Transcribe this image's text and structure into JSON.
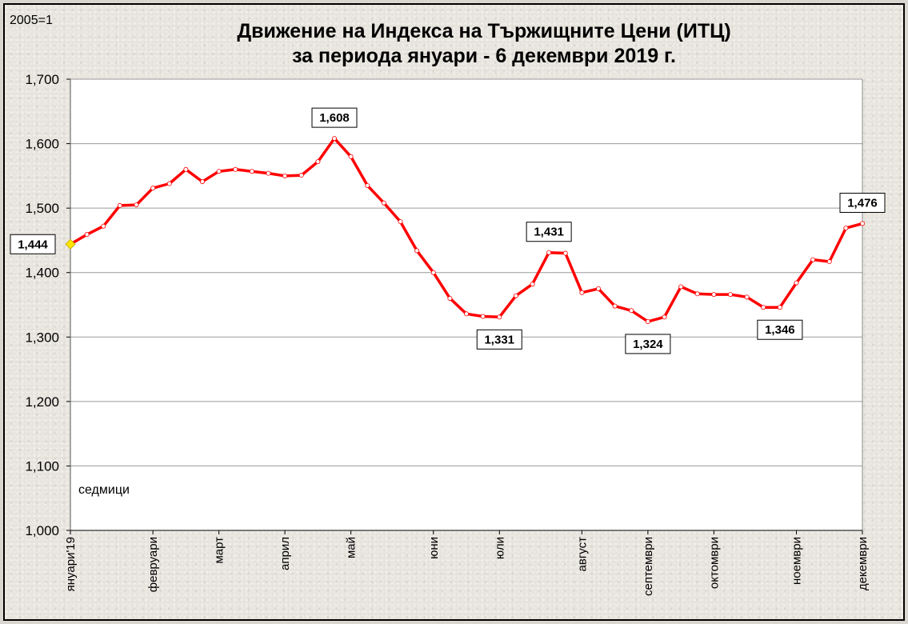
{
  "chart_data": {
    "type": "line",
    "title": "Движение на Индекса на Тържищните Цени (ИТЦ)",
    "subtitle": "за периода януари - 6 декември 2019 г.",
    "base_note": "2005=1",
    "xlabel": "седмици",
    "ylabel": "",
    "ylim": [
      1.0,
      1.7
    ],
    "yticks": [
      1.0,
      1.1,
      1.2,
      1.3,
      1.4,
      1.5,
      1.6,
      1.7
    ],
    "ytick_labels": [
      "1,000",
      "1,100",
      "1,200",
      "1,300",
      "1,400",
      "1,500",
      "1,600",
      "1,700"
    ],
    "grid": true,
    "line_color": "#ff0000",
    "month_labels": [
      {
        "label": "януари'19",
        "week": 0
      },
      {
        "label": "февруари",
        "week": 5
      },
      {
        "label": "март",
        "week": 9
      },
      {
        "label": "април",
        "week": 13
      },
      {
        "label": "май",
        "week": 17
      },
      {
        "label": "юни",
        "week": 22
      },
      {
        "label": "юли",
        "week": 26
      },
      {
        "label": "август",
        "week": 31
      },
      {
        "label": "септември",
        "week": 35
      },
      {
        "label": "октомври",
        "week": 39
      },
      {
        "label": "ноември",
        "week": 44
      },
      {
        "label": "декември",
        "week": 48
      }
    ],
    "series": [
      {
        "values": [
          1.444,
          1.459,
          1.472,
          1.504,
          1.505,
          1.531,
          1.538,
          1.56,
          1.541,
          1.557,
          1.56,
          1.557,
          1.554,
          1.55,
          1.551,
          1.572,
          1.608,
          1.58,
          1.535,
          1.508,
          1.479,
          1.434,
          1.4,
          1.36,
          1.336,
          1.332,
          1.331,
          1.364,
          1.382,
          1.431,
          1.43,
          1.369,
          1.375,
          1.348,
          1.341,
          1.324,
          1.331,
          1.378,
          1.367,
          1.366,
          1.366,
          1.362,
          1.346,
          1.346,
          1.384,
          1.42,
          1.417,
          1.469,
          1.476
        ]
      }
    ],
    "data_labels": [
      {
        "text": "1,444",
        "week": 0
      },
      {
        "text": "1,608",
        "week": 16
      },
      {
        "text": "1,331",
        "week": 26
      },
      {
        "text": "1,431",
        "week": 29
      },
      {
        "text": "1,324",
        "week": 35
      },
      {
        "text": "1,346",
        "week": 43
      },
      {
        "text": "1,476",
        "week": 48
      }
    ]
  }
}
